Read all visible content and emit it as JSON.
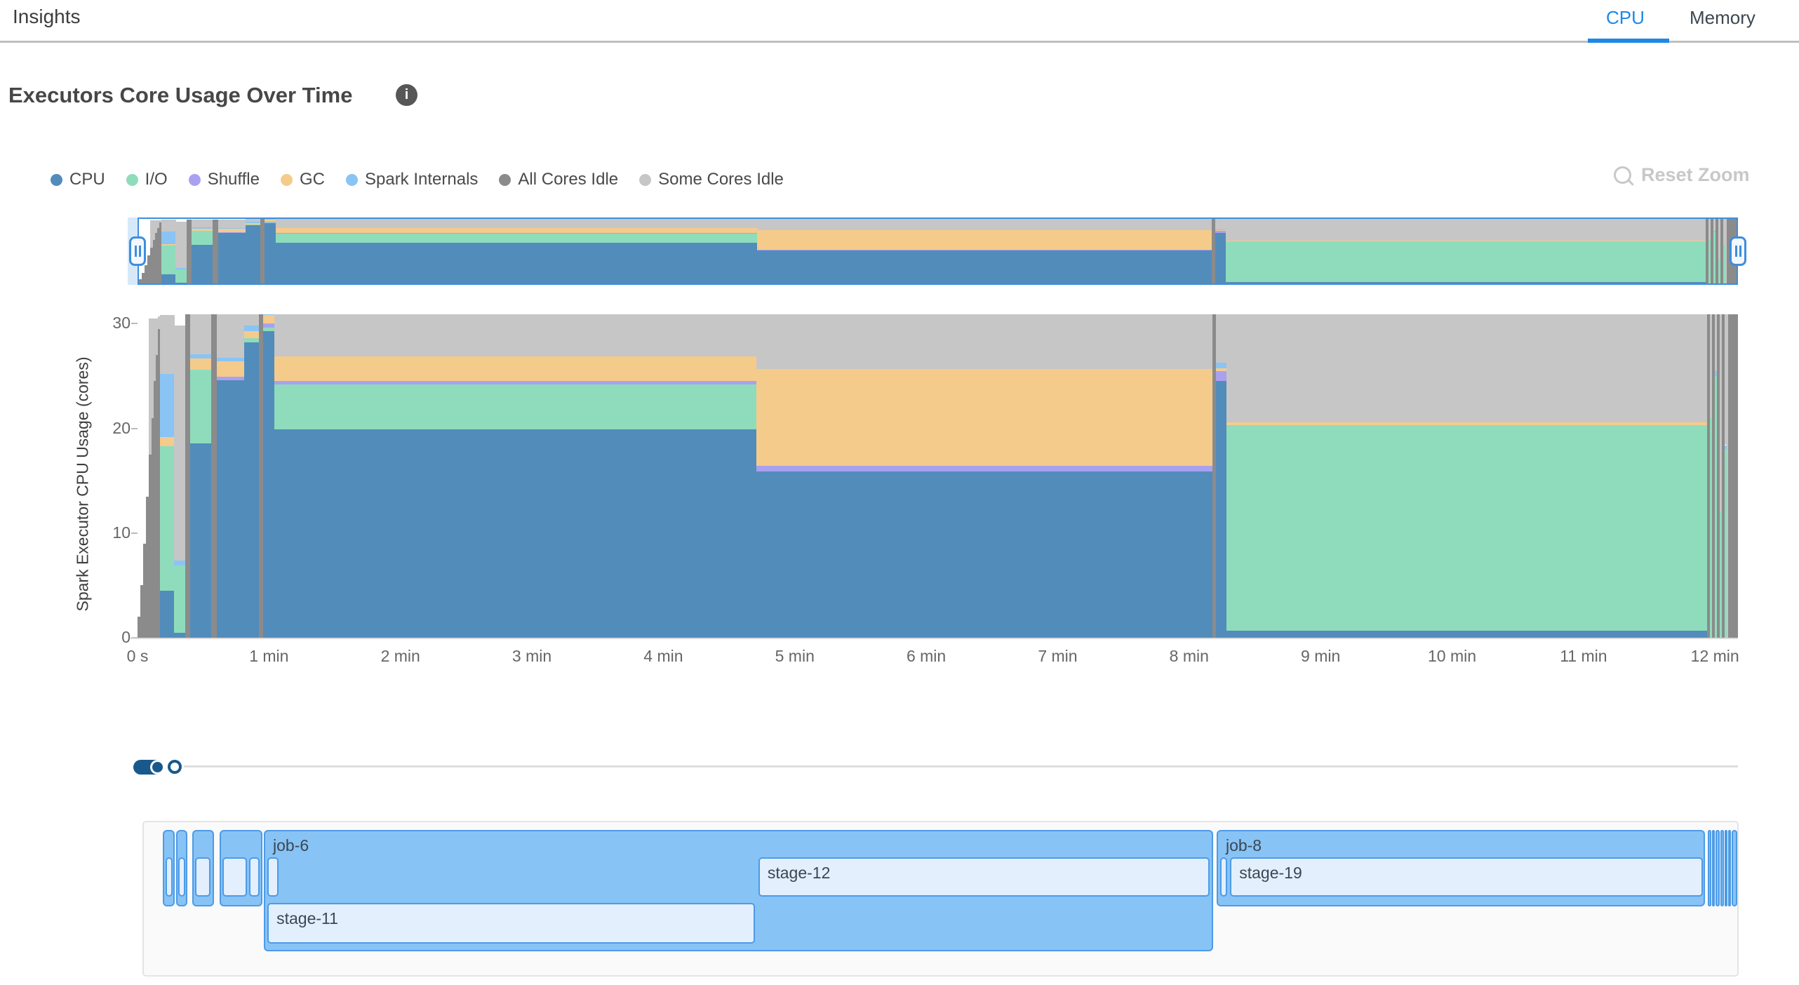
{
  "header": {
    "title": "Insights",
    "tabs": [
      {
        "label": "CPU",
        "active": true
      },
      {
        "label": "Memory",
        "active": false
      }
    ]
  },
  "section": {
    "title": "Executors Core Usage Over Time",
    "info_glyph": "i"
  },
  "toolbar": {
    "reset_zoom_label": "Reset Zoom"
  },
  "palette": {
    "cpu": "#528cbb",
    "io": "#8edcbc",
    "shuffle": "#a9a1f0",
    "gc": "#f5cb8b",
    "internals": "#89c4f4",
    "allidle": "#8b8b8b",
    "somegrey": "#c6c6c6"
  },
  "legend": [
    {
      "key": "cpu",
      "label": "CPU"
    },
    {
      "key": "io",
      "label": "I/O"
    },
    {
      "key": "shuffle",
      "label": "Shuffle"
    },
    {
      "key": "gc",
      "label": "GC"
    },
    {
      "key": "internals",
      "label": "Spark Internals"
    },
    {
      "key": "allidle",
      "label": "All Cores Idle"
    },
    {
      "key": "somegrey",
      "label": "Some Cores Idle"
    }
  ],
  "chart_data": {
    "type": "area",
    "stacked": true,
    "title": "Executors Core Usage Over Time",
    "ylabel": "Spark Executor CPU Usage (cores)",
    "ylim": [
      0,
      31
    ],
    "grid": false,
    "legend_position": "top-left",
    "yticks": [
      {
        "value": 0,
        "label": "0"
      },
      {
        "value": 10,
        "label": "10"
      },
      {
        "value": 20,
        "label": "20"
      },
      {
        "value": 30,
        "label": "30"
      }
    ],
    "xticks": [
      {
        "t": 0,
        "label": "0 s"
      },
      {
        "t": 1,
        "label": "1 min"
      },
      {
        "t": 2,
        "label": "2 min"
      },
      {
        "t": 3,
        "label": "3 min"
      },
      {
        "t": 4,
        "label": "4 min"
      },
      {
        "t": 5,
        "label": "5 min"
      },
      {
        "t": 6,
        "label": "6 min"
      },
      {
        "t": 7,
        "label": "7 min"
      },
      {
        "t": 8,
        "label": "8 min"
      },
      {
        "t": 9,
        "label": "9 min"
      },
      {
        "t": 10,
        "label": "10 min"
      },
      {
        "t": 11,
        "label": "11 min"
      },
      {
        "t": 12,
        "label": "12 min"
      }
    ],
    "x_max_min": 12.175,
    "series_keys": [
      "cpu",
      "io",
      "shuffle",
      "gc",
      "internals",
      "allidle",
      "somegrey"
    ],
    "segments": [
      {
        "t0": 0.0,
        "t1": 0.021,
        "stack": [
          [
            "allidle",
            2
          ]
        ]
      },
      {
        "t0": 0.021,
        "t1": 0.043,
        "stack": [
          [
            "allidle",
            5
          ]
        ]
      },
      {
        "t0": 0.043,
        "t1": 0.064,
        "stack": [
          [
            "allidle",
            9
          ]
        ]
      },
      {
        "t0": 0.064,
        "t1": 0.085,
        "stack": [
          [
            "allidle",
            13.5
          ]
        ]
      },
      {
        "t0": 0.085,
        "t1": 0.107,
        "stack": [
          [
            "allidle",
            17.5
          ],
          [
            "somegrey",
            13
          ]
        ]
      },
      {
        "t0": 0.107,
        "t1": 0.123,
        "stack": [
          [
            "allidle",
            21
          ],
          [
            "somegrey",
            9.5
          ]
        ]
      },
      {
        "t0": 0.123,
        "t1": 0.139,
        "stack": [
          [
            "allidle",
            24.5
          ],
          [
            "somegrey",
            6
          ]
        ]
      },
      {
        "t0": 0.139,
        "t1": 0.155,
        "stack": [
          [
            "allidle",
            27
          ],
          [
            "somegrey",
            3.5
          ]
        ]
      },
      {
        "t0": 0.155,
        "t1": 0.171,
        "stack": [
          [
            "allidle",
            29.5
          ],
          [
            "somegrey",
            1.2
          ]
        ]
      },
      {
        "t0": 0.171,
        "t1": 0.278,
        "stack": [
          [
            "cpu",
            4.5
          ],
          [
            "io",
            13.8
          ],
          [
            "gc",
            0.9
          ],
          [
            "internals",
            6.0
          ],
          [
            "somegrey",
            5.6
          ]
        ]
      },
      {
        "t0": 0.278,
        "t1": 0.363,
        "stack": [
          [
            "cpu",
            0.5
          ],
          [
            "io",
            6.4
          ],
          [
            "internals",
            0.45
          ],
          [
            "somegrey",
            22.5
          ]
        ]
      },
      {
        "t0": 0.363,
        "t1": 0.4,
        "stack": [
          [
            "allidle",
            30.9
          ]
        ]
      },
      {
        "t0": 0.4,
        "t1": 0.56,
        "stack": [
          [
            "cpu",
            18.6
          ],
          [
            "io",
            7.0
          ],
          [
            "gc",
            1.1
          ],
          [
            "internals",
            0.4
          ],
          [
            "somegrey",
            3.8
          ]
        ]
      },
      {
        "t0": 0.56,
        "t1": 0.603,
        "stack": [
          [
            "allidle",
            31.0
          ]
        ]
      },
      {
        "t0": 0.603,
        "t1": 0.811,
        "stack": [
          [
            "cpu",
            24.6
          ],
          [
            "shuffle",
            0.35
          ],
          [
            "gc",
            1.45
          ],
          [
            "internals",
            0.35
          ],
          [
            "somegrey",
            4.3
          ]
        ]
      },
      {
        "t0": 0.811,
        "t1": 0.923,
        "stack": [
          [
            "cpu",
            28.2
          ],
          [
            "io",
            0.4
          ],
          [
            "gc",
            0.7
          ],
          [
            "internals",
            0.5
          ],
          [
            "somegrey",
            1.4
          ]
        ]
      },
      {
        "t0": 0.923,
        "t1": 0.955,
        "stack": [
          [
            "allidle",
            31.2
          ]
        ]
      },
      {
        "t0": 0.955,
        "t1": 1.041,
        "stack": [
          [
            "cpu",
            29.3
          ],
          [
            "io",
            0.35
          ],
          [
            "shuffle",
            0.4
          ],
          [
            "gc",
            0.75
          ],
          [
            "internals",
            0.5
          ]
        ]
      },
      {
        "t0": 1.041,
        "t1": 4.708,
        "stack": [
          [
            "cpu",
            19.9
          ],
          [
            "io",
            4.3
          ],
          [
            "shuffle",
            0.3
          ],
          [
            "gc",
            2.4
          ],
          [
            "somegrey",
            4.3
          ]
        ]
      },
      {
        "t0": 4.708,
        "t1": 8.177,
        "stack": [
          [
            "cpu",
            15.9
          ],
          [
            "shuffle",
            0.5
          ],
          [
            "gc",
            9.3
          ],
          [
            "somegrey",
            5.5
          ]
        ]
      },
      {
        "t0": 8.177,
        "t1": 8.204,
        "stack": [
          [
            "allidle",
            31.2
          ]
        ]
      },
      {
        "t0": 8.204,
        "t1": 8.284,
        "stack": [
          [
            "cpu",
            24.5
          ],
          [
            "shuffle",
            1.0
          ],
          [
            "gc",
            0.25
          ],
          [
            "internals",
            0.5
          ],
          [
            "somegrey",
            5.0
          ]
        ]
      },
      {
        "t0": 8.284,
        "t1": 11.94,
        "stack": [
          [
            "cpu",
            0.7
          ],
          [
            "io",
            19.6
          ],
          [
            "gc",
            0.3
          ],
          [
            "somegrey",
            10.6
          ]
        ]
      },
      {
        "t0": 11.94,
        "t1": 11.962,
        "stack": [
          [
            "allidle",
            31.2
          ]
        ]
      },
      {
        "t0": 11.962,
        "t1": 11.978,
        "stack": [
          [
            "io",
            21
          ],
          [
            "somegrey",
            10.2
          ]
        ]
      },
      {
        "t0": 11.978,
        "t1": 11.999,
        "stack": [
          [
            "allidle",
            31.2
          ]
        ]
      },
      {
        "t0": 11.999,
        "t1": 12.015,
        "stack": [
          [
            "io",
            25
          ],
          [
            "internals",
            0.5
          ],
          [
            "somegrey",
            5.7
          ]
        ]
      },
      {
        "t0": 12.015,
        "t1": 12.036,
        "stack": [
          [
            "allidle",
            31.2
          ]
        ]
      },
      {
        "t0": 12.036,
        "t1": 12.052,
        "stack": [
          [
            "io",
            12
          ],
          [
            "somegrey",
            19.2
          ]
        ]
      },
      {
        "t0": 12.052,
        "t1": 12.073,
        "stack": [
          [
            "allidle",
            31.2
          ]
        ]
      },
      {
        "t0": 12.073,
        "t1": 12.089,
        "stack": [
          [
            "io",
            18
          ],
          [
            "internals",
            0.4
          ],
          [
            "somegrey",
            12.8
          ]
        ]
      },
      {
        "t0": 12.089,
        "t1": 12.101,
        "stack": [
          [
            "somegrey",
            31.2
          ]
        ]
      },
      {
        "t0": 12.101,
        "t1": 12.175,
        "stack": [
          [
            "allidle",
            31.2
          ]
        ]
      }
    ]
  },
  "timeline": {
    "jobs": [
      {
        "label": "",
        "t0": 0.192,
        "t1": 0.283,
        "tall": false,
        "stages": [
          {
            "label": "",
            "t0": 0.214,
            "t1": 0.267,
            "row": 0
          }
        ]
      },
      {
        "label": "",
        "t0": 0.294,
        "t1": 0.379,
        "tall": false,
        "stages": [
          {
            "label": "",
            "t0": 0.31,
            "t1": 0.363,
            "row": 0
          }
        ]
      },
      {
        "label": "",
        "t0": 0.416,
        "t1": 0.582,
        "tall": false,
        "stages": [
          {
            "label": "",
            "t0": 0.438,
            "t1": 0.555,
            "row": 0
          }
        ]
      },
      {
        "label": "",
        "t0": 0.625,
        "t1": 0.95,
        "tall": false,
        "stages": [
          {
            "label": "",
            "t0": 0.646,
            "t1": 0.833,
            "row": 0
          },
          {
            "label": "",
            "t0": 0.849,
            "t1": 0.929,
            "row": 0
          }
        ]
      },
      {
        "label": "job-6",
        "t0": 0.961,
        "t1": 8.183,
        "tall": true,
        "stages": [
          {
            "label": "",
            "t0": 0.988,
            "t1": 1.073,
            "row": 0
          },
          {
            "label": "stage-11",
            "t0": 0.988,
            "t1": 4.697,
            "row": 1
          },
          {
            "label": "stage-12",
            "t0": 4.723,
            "t1": 8.156,
            "row": 0
          }
        ]
      },
      {
        "label": "job-8",
        "t0": 8.209,
        "t1": 11.924,
        "tall": false,
        "stages": [
          {
            "label": "",
            "t0": 8.234,
            "t1": 8.287,
            "row": 0
          },
          {
            "label": "stage-19",
            "t0": 8.312,
            "t1": 11.908,
            "row": 0
          }
        ]
      },
      {
        "label": "",
        "t0": 11.947,
        "t1": 11.974,
        "tall": false,
        "stages": []
      },
      {
        "label": "",
        "t0": 11.979,
        "t1": 12.0,
        "tall": false,
        "stages": []
      },
      {
        "label": "",
        "t0": 12.005,
        "t1": 12.037,
        "tall": false,
        "stages": []
      },
      {
        "label": "",
        "t0": 12.042,
        "t1": 12.069,
        "tall": false,
        "stages": []
      },
      {
        "label": "",
        "t0": 12.075,
        "t1": 12.096,
        "tall": false,
        "stages": []
      },
      {
        "label": "",
        "t0": 12.101,
        "t1": 12.123,
        "tall": false,
        "stages": []
      },
      {
        "label": "",
        "t0": 12.128,
        "t1": 12.171,
        "tall": false,
        "stages": []
      }
    ]
  }
}
